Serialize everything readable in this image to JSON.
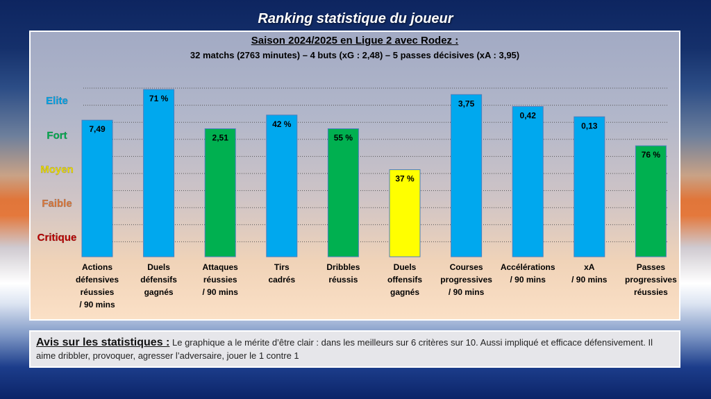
{
  "header": {
    "title": "Ranking statistique du joueur"
  },
  "comment": {
    "label": "Avis sur les statistiques :",
    "text": "Le graphique a le mérite d’être clair : dans les meilleurs sur 6 critères sur 10. Aussi impliqué et efficace défensivement. Il aime dribbler, provoquer, agresser l’adversaire, jouer le 1 contre 1"
  },
  "colors": {
    "blue": "#00a8ee",
    "green": "#00b050",
    "yellow": "#ffff00"
  },
  "chart_data": {
    "type": "bar",
    "title": "Saison 2024/2025 en Ligue 2 avec Rodez :",
    "subtitle": "32 matchs (2763 minutes) – 4 buts (xG : 2,48) – 5 passes décisives (xA : 3,95)",
    "levels": [
      {
        "label": "Elite",
        "color": "#00a8ee"
      },
      {
        "label": "Fort",
        "color": "#00b050"
      },
      {
        "label": "Moyen",
        "color": "#f2e200"
      },
      {
        "label": "Faible",
        "color": "#e07a3c"
      },
      {
        "label": "Critique",
        "color": "#c00000"
      }
    ],
    "bars": [
      {
        "label": [
          "Actions",
          "défensives",
          "réussies",
          "/ 90 mins"
        ],
        "value_label": "7,49",
        "level": 0.8,
        "color": "blue"
      },
      {
        "label": [
          "Duels",
          "défensifs",
          "gagnés"
        ],
        "value_label": "71 %",
        "level": 0.98,
        "color": "blue"
      },
      {
        "label": [
          "Attaques",
          "réussies",
          "/ 90 mins"
        ],
        "value_label": "2,51",
        "level": 0.75,
        "color": "green"
      },
      {
        "label": [
          "Tirs",
          "cadrés"
        ],
        "value_label": "42 %",
        "level": 0.83,
        "color": "blue"
      },
      {
        "label": [
          "Dribbles",
          "réussis"
        ],
        "value_label": "55 %",
        "level": 0.75,
        "color": "green"
      },
      {
        "label": [
          "Duels",
          "offensifs",
          "gagnés"
        ],
        "value_label": "37 %",
        "level": 0.51,
        "color": "yellow"
      },
      {
        "label": [
          "Courses",
          "progressives",
          "/ 90 mins"
        ],
        "value_label": "3,75",
        "level": 0.95,
        "color": "blue"
      },
      {
        "label": [
          "Accélérations",
          "/ 90 mins"
        ],
        "value_label": "0,42",
        "level": 0.88,
        "color": "blue"
      },
      {
        "label": [
          "xA",
          "/ 90 mins"
        ],
        "value_label": "0,13",
        "level": 0.82,
        "color": "blue"
      },
      {
        "label": [
          "Passes",
          "progressives",
          "réussies"
        ],
        "value_label": "76 %",
        "level": 0.65,
        "color": "green"
      }
    ],
    "grid": true
  }
}
